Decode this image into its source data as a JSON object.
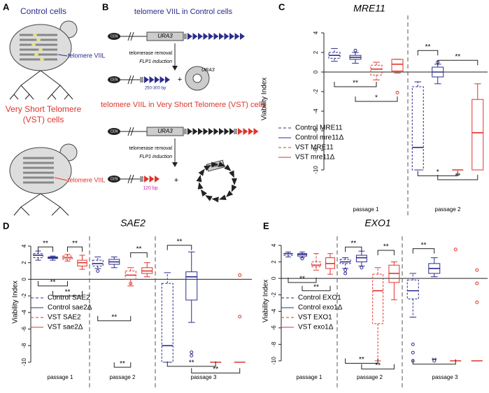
{
  "panel_labels": [
    "A",
    "B",
    "C",
    "D",
    "E"
  ],
  "diagram_a": {
    "control_title": "Control cells",
    "control_label": "telomere VIIL",
    "vst_title": [
      "Very Short Telomere",
      "(VST) cells"
    ],
    "vst_label": "telomere VIIL"
  },
  "diagram_b": {
    "control_title": "telomere VIIL in Control cells",
    "vst_title": "telomere VIIL in Very Short Telomere (VST) cells",
    "cen": "CEN",
    "ura3": "URA3",
    "step": [
      "telomerase removal",
      "FLP1 induction"
    ],
    "control_length": "250-300 bp",
    "vst_length": "120 bp",
    "plus": "+"
  },
  "chart_data": [
    {
      "type": "box",
      "title": "MRE11",
      "y_label": "Viability Index",
      "ylim": [
        -10,
        4.5
      ],
      "yticks": [
        -10,
        -8,
        -6,
        -4,
        -2,
        0,
        2,
        4
      ],
      "categories": [
        "passage 1",
        "passage 2"
      ],
      "series": [
        {
          "name": "Control MRE11",
          "color": "#2c2c8e",
          "line_style": "dashed",
          "values": [
            {
              "min": 1.1,
              "q1": 1.4,
              "median": 1.7,
              "q3": 2.0,
              "max": 2.4,
              "outliers": []
            },
            {
              "min": -10,
              "q1": -10,
              "median": -7.7,
              "q3": -1.5,
              "max": -1,
              "outliers": []
            }
          ]
        },
        {
          "name": "Control mre11Δ",
          "color": "#2c2c8e",
          "line_style": "solid",
          "values": [
            {
              "min": 0.9,
              "q1": 1.3,
              "median": 1.5,
              "q3": 1.7,
              "max": 2.0,
              "outliers": [
                2.2
              ]
            },
            {
              "min": -1.2,
              "q1": -0.5,
              "median": 0,
              "q3": 0.5,
              "max": 0.8,
              "outliers": [
                1.0
              ]
            }
          ]
        },
        {
          "name": "VST MRE11",
          "color": "#e0332b",
          "line_style": "dashed",
          "values": [
            {
              "min": -0.8,
              "q1": -0.3,
              "median": 0.3,
              "q3": 0.7,
              "max": 1.0,
              "outliers": []
            },
            {
              "min": -10,
              "q1": -10,
              "median": -10,
              "q3": -10,
              "max": -10,
              "outliers": []
            }
          ]
        },
        {
          "name": "VST mre11Δ",
          "color": "#e0332b",
          "line_style": "solid",
          "values": [
            {
              "min": -0.1,
              "q1": 0.1,
              "median": 0.8,
              "q3": 1.3,
              "max": 1.3,
              "outliers": [
                -2.1
              ]
            },
            {
              "min": -10,
              "q1": -10,
              "median": -6.2,
              "q3": -2.8,
              "max": -1.2,
              "outliers": []
            }
          ]
        }
      ],
      "significance": [
        "**",
        "*",
        "**",
        "**",
        "*",
        "**"
      ]
    },
    {
      "type": "box",
      "title": "SAE2",
      "y_label": "Viability Index",
      "ylim": [
        -10,
        4.5
      ],
      "yticks": [
        -10,
        -8,
        -6,
        -4,
        -2,
        0,
        2,
        4
      ],
      "categories": [
        "passage 1",
        "passage 2",
        "passage 3"
      ],
      "series": [
        {
          "name": "Control SAE2",
          "color": "#2c2c8e",
          "line_style": "dashed",
          "values": [
            {
              "min": 2.3,
              "q1": 2.6,
              "median": 2.9,
              "q3": 3.1,
              "max": 3.4,
              "outliers": []
            },
            {
              "min": 1.3,
              "q1": 1.6,
              "median": 1.9,
              "q3": 2.3,
              "max": 2.7,
              "outliers": [
                1.0
              ]
            },
            {
              "min": -10,
              "q1": -10,
              "median": -8,
              "q3": -0.5,
              "max": 0.8,
              "outliers": []
            }
          ]
        },
        {
          "name": "Control sae2Δ",
          "color": "#2c2c8e",
          "line_style": "solid",
          "values": [
            {
              "min": 2.3,
              "q1": 2.5,
              "median": 2.6,
              "q3": 2.7,
              "max": 2.8,
              "outliers": []
            },
            {
              "min": 1.4,
              "q1": 1.8,
              "median": 2.1,
              "q3": 2.4,
              "max": 2.7,
              "outliers": []
            },
            {
              "min": -5.2,
              "q1": -2.5,
              "median": 0.3,
              "q3": 0.9,
              "max": 3.3,
              "outliers": [
                -8.8,
                -9.2
              ]
            }
          ]
        },
        {
          "name": "VST SAE2",
          "color": "#e0332b",
          "line_style": "dashed",
          "values": [
            {
              "min": 2.2,
              "q1": 2.4,
              "median": 2.6,
              "q3": 2.8,
              "max": 3.0,
              "outliers": []
            },
            {
              "min": -0.8,
              "q1": 0,
              "median": 0.5,
              "q3": 1.0,
              "max": 1.4,
              "outliers": [
                -0.5
              ]
            },
            {
              "min": -10,
              "q1": -10,
              "median": -10,
              "q3": -10,
              "max": -10,
              "outliers": []
            }
          ]
        },
        {
          "name": "VST sae2Δ",
          "color": "#e0332b",
          "line_style": "solid",
          "values": [
            {
              "min": 1.2,
              "q1": 1.6,
              "median": 2.0,
              "q3": 2.3,
              "max": 2.9,
              "outliers": []
            },
            {
              "min": 0.3,
              "q1": 0.7,
              "median": 1.0,
              "q3": 1.4,
              "max": 2.0,
              "outliers": []
            },
            {
              "min": -10,
              "q1": -10,
              "median": -10,
              "q3": -10,
              "max": -10,
              "outliers": [
                0.5,
                -4.5
              ]
            }
          ]
        }
      ],
      "significance": [
        "**",
        "**",
        "**",
        "**",
        "**",
        "**",
        "**",
        "**",
        "**",
        "**"
      ]
    },
    {
      "type": "box",
      "title": "EXO1",
      "y_label": "Viability Index",
      "ylim": [
        -10,
        4.5
      ],
      "yticks": [
        -10,
        -8,
        -6,
        -4,
        -2,
        0,
        2,
        4
      ],
      "categories": [
        "passage 1",
        "passage 2",
        "passage 3"
      ],
      "series": [
        {
          "name": "Control EXO1",
          "color": "#2c2c8e",
          "line_style": "dashed",
          "values": [
            {
              "min": 2.6,
              "q1": 2.8,
              "median": 3.0,
              "q3": 3.0,
              "max": 3.2,
              "outliers": []
            },
            {
              "min": 1.2,
              "q1": 1.8,
              "median": 2.0,
              "q3": 2.3,
              "max": 2.5,
              "outliers": [
                1.0,
                0.6
              ]
            },
            {
              "min": -4.7,
              "q1": -2.5,
              "median": -1.5,
              "q3": -0.2,
              "max": 0.6,
              "outliers": [
                -8,
                -9,
                -10
              ]
            }
          ]
        },
        {
          "name": "Control exo1Δ",
          "color": "#2c2c8e",
          "line_style": "solid",
          "values": [
            {
              "min": 2.5,
              "q1": 2.7,
              "median": 2.9,
              "q3": 3.0,
              "max": 3.2,
              "outliers": [
                2.4
              ]
            },
            {
              "min": 1.5,
              "q1": 2.0,
              "median": 2.5,
              "q3": 2.8,
              "max": 3.3,
              "outliers": [
                1.3
              ]
            },
            {
              "min": 0.2,
              "q1": 0.6,
              "median": 1.2,
              "q3": 1.8,
              "max": 2.5,
              "outliers": [
                -10
              ]
            }
          ]
        },
        {
          "name": "VST EXO1",
          "color": "#e0332b",
          "line_style": "dashed",
          "values": [
            {
              "min": 1.0,
              "q1": 1.4,
              "median": 1.6,
              "q3": 2.0,
              "max": 3.0,
              "outliers": []
            },
            {
              "min": -10,
              "q1": -5.5,
              "median": -1.5,
              "q3": 0.5,
              "max": 1.3,
              "outliers": []
            },
            {
              "min": -10,
              "q1": -10,
              "median": -10,
              "q3": -10,
              "max": -10,
              "outliers": [
                3.5
              ]
            }
          ]
        },
        {
          "name": "VST exo1Δ",
          "color": "#e0332b",
          "line_style": "solid",
          "values": [
            {
              "min": 0.5,
              "q1": 1.2,
              "median": 1.8,
              "q3": 2.5,
              "max": 3.0,
              "outliers": []
            },
            {
              "min": -2.6,
              "q1": -0.5,
              "median": 0.6,
              "q3": 1.6,
              "max": 2.0,
              "outliers": []
            },
            {
              "min": -10,
              "q1": -10,
              "median": -10,
              "q3": -10,
              "max": -10,
              "outliers": [
                1.0,
                -0.6,
                -2.9
              ]
            }
          ]
        }
      ],
      "significance": [
        "**",
        "**",
        "**",
        "**",
        "**",
        "**",
        "**",
        "**"
      ]
    }
  ]
}
